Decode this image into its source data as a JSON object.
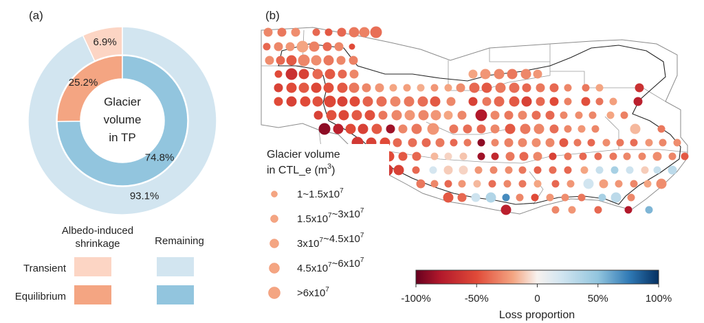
{
  "panel_a": {
    "label": "(a)",
    "center_text": [
      "Glacier",
      "volume",
      "in TP"
    ],
    "legend": {
      "albedo_title": [
        "Albedo-induced",
        "shrinkage"
      ],
      "remaining_title": "Remaining",
      "row_transient": "Transient",
      "row_equilibrium": "Equilibrium"
    }
  },
  "panel_b": {
    "label": "(b)",
    "size_legend_title_line1": "Glacier volume",
    "size_legend_title_line2_base": "in CTL_e (m",
    "size_legend_title_line2_sup": "3",
    "size_legend_title_line2_end": ")",
    "size_legend_items": [
      {
        "parts": [
          {
            "t": "1~1.5x10"
          },
          {
            "sup": "7"
          }
        ]
      },
      {
        "parts": [
          {
            "t": "1.5x10"
          },
          {
            "sup": "7"
          },
          {
            "t": "~3x10"
          },
          {
            "sup": "7"
          }
        ]
      },
      {
        "parts": [
          {
            "t": "3x10"
          },
          {
            "sup": "7"
          },
          {
            "t": "~4.5x10"
          },
          {
            "sup": "7"
          }
        ]
      },
      {
        "parts": [
          {
            "t": "4.5x10"
          },
          {
            "sup": "7"
          },
          {
            "t": "~6x10"
          },
          {
            "sup": "7"
          }
        ]
      },
      {
        "parts": [
          {
            "t": ">6x10"
          },
          {
            "sup": "7"
          }
        ]
      }
    ],
    "colorbar": {
      "ticks": [
        "-100%",
        "-50%",
        "0",
        "50%",
        "100%"
      ],
      "tick_values": [
        -100,
        -50,
        0,
        50,
        100
      ],
      "label": "Loss proportion"
    }
  },
  "chart_data": [
    {
      "type": "pie",
      "title": "",
      "rings": [
        {
          "name": "Transient",
          "slices": [
            {
              "label": "Albedo-induced shrinkage",
              "value": 6.9,
              "display": "6.9%",
              "color": "#fcd5c4"
            },
            {
              "label": "Remaining",
              "value": 93.1,
              "display": "93.1%",
              "color": "#d2e5f0"
            }
          ]
        },
        {
          "name": "Equilibrium",
          "slices": [
            {
              "label": "Albedo-induced shrinkage",
              "value": 25.2,
              "display": "25.2%",
              "color": "#f4a582"
            },
            {
              "label": "Remaining",
              "value": 74.8,
              "display": "74.8%",
              "color": "#92c5de"
            }
          ]
        }
      ]
    },
    {
      "type": "scatter",
      "title": "",
      "xlabel": "",
      "ylabel": "",
      "size_variable": "Glacier volume in CTL_e (m3)",
      "color_variable": "Loss proportion",
      "color_range": [
        -100,
        100
      ],
      "colorscale": [
        "#67001f",
        "#b2182b",
        "#d6604d",
        "#f4a582",
        "#fddbc7",
        "#f7f7f7",
        "#d1e5f0",
        "#92c5de",
        "#4393c3",
        "#2166ac",
        "#053061"
      ]
    }
  ]
}
